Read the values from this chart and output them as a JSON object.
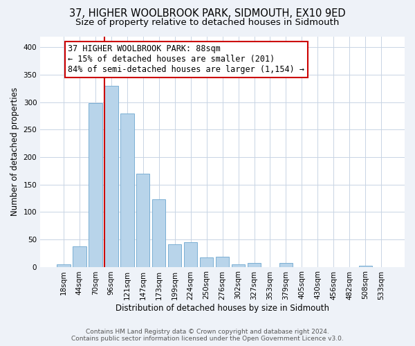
{
  "title": "37, HIGHER WOOLBROOK PARK, SIDMOUTH, EX10 9ED",
  "subtitle": "Size of property relative to detached houses in Sidmouth",
  "xlabel": "Distribution of detached houses by size in Sidmouth",
  "ylabel": "Number of detached properties",
  "bar_labels": [
    "18sqm",
    "44sqm",
    "70sqm",
    "96sqm",
    "121sqm",
    "147sqm",
    "173sqm",
    "199sqm",
    "224sqm",
    "250sqm",
    "276sqm",
    "302sqm",
    "327sqm",
    "353sqm",
    "379sqm",
    "405sqm",
    "430sqm",
    "456sqm",
    "482sqm",
    "508sqm",
    "533sqm"
  ],
  "bar_values": [
    5,
    37,
    298,
    330,
    280,
    170,
    123,
    41,
    45,
    17,
    18,
    5,
    7,
    0,
    7,
    0,
    0,
    0,
    0,
    2,
    0
  ],
  "bar_color": "#b8d4ea",
  "bar_edge_color": "#7aafd4",
  "vline_color": "#cc0000",
  "annotation_text": "37 HIGHER WOOLBROOK PARK: 88sqm\n← 15% of detached houses are smaller (201)\n84% of semi-detached houses are larger (1,154) →",
  "annotation_box_color": "#ffffff",
  "annotation_box_edge": "#cc0000",
  "ylim": [
    0,
    420
  ],
  "yticks": [
    0,
    50,
    100,
    150,
    200,
    250,
    300,
    350,
    400
  ],
  "footer_line1": "Contains HM Land Registry data © Crown copyright and database right 2024.",
  "footer_line2": "Contains public sector information licensed under the Open Government Licence v3.0.",
  "background_color": "#eef2f8",
  "plot_bg_color": "#ffffff",
  "grid_color": "#c8d4e4",
  "title_fontsize": 10.5,
  "subtitle_fontsize": 9.5,
  "xlabel_fontsize": 8.5,
  "ylabel_fontsize": 8.5,
  "tick_fontsize": 7.5,
  "annotation_fontsize": 8.5,
  "footer_fontsize": 6.5
}
